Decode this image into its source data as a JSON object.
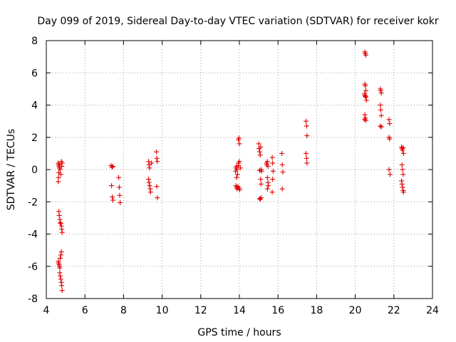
{
  "chart_data": {
    "type": "scatter",
    "title": "Day 099 of 2019, Sidereal Day-to-day VTEC variation (SDTVAR) for receiver kokr",
    "xlabel": "GPS time / hours",
    "ylabel": "SDTVAR / TECUs",
    "xlim": [
      4,
      24
    ],
    "ylim": [
      -8,
      8
    ],
    "xticks": [
      4,
      6,
      8,
      10,
      12,
      14,
      16,
      18,
      20,
      22,
      24
    ],
    "yticks": [
      -8,
      -6,
      -4,
      -2,
      0,
      2,
      4,
      6,
      8
    ],
    "grid": true,
    "marker": "+",
    "color": "#e00000",
    "series": [
      {
        "name": "SDTVAR",
        "points": [
          [
            4.62,
            0.4
          ],
          [
            4.64,
            0.3
          ],
          [
            4.66,
            0.2
          ],
          [
            4.68,
            0.1
          ],
          [
            4.65,
            -0.2
          ],
          [
            4.63,
            -0.5
          ],
          [
            4.62,
            -0.75
          ],
          [
            4.7,
            0.3
          ],
          [
            4.72,
            0.0
          ],
          [
            4.75,
            -0.3
          ],
          [
            4.78,
            0.5
          ],
          [
            4.8,
            0.2
          ],
          [
            4.82,
            0.4
          ],
          [
            4.65,
            -2.6
          ],
          [
            4.67,
            -2.85
          ],
          [
            4.7,
            -3.1
          ],
          [
            4.72,
            -3.3
          ],
          [
            4.75,
            -3.35
          ],
          [
            4.78,
            -3.5
          ],
          [
            4.8,
            -3.7
          ],
          [
            4.82,
            -3.9
          ],
          [
            4.62,
            -5.7
          ],
          [
            4.64,
            -5.8
          ],
          [
            4.66,
            -5.9
          ],
          [
            4.68,
            -6.0
          ],
          [
            4.7,
            -6.1
          ],
          [
            4.72,
            -5.5
          ],
          [
            4.75,
            -5.3
          ],
          [
            4.78,
            -5.1
          ],
          [
            4.7,
            -6.4
          ],
          [
            4.72,
            -6.6
          ],
          [
            4.75,
            -6.8
          ],
          [
            4.78,
            -7.0
          ],
          [
            4.8,
            -7.2
          ],
          [
            4.82,
            -7.5
          ],
          [
            7.35,
            0.25
          ],
          [
            7.4,
            0.15
          ],
          [
            7.45,
            0.2
          ],
          [
            7.38,
            -1.0
          ],
          [
            7.42,
            -1.7
          ],
          [
            7.45,
            -1.9
          ],
          [
            7.75,
            -0.5
          ],
          [
            7.78,
            -1.1
          ],
          [
            7.8,
            -1.6
          ],
          [
            7.82,
            -2.05
          ],
          [
            9.3,
            0.5
          ],
          [
            9.32,
            0.3
          ],
          [
            9.35,
            0.1
          ],
          [
            9.3,
            -0.6
          ],
          [
            9.32,
            -0.8
          ],
          [
            9.35,
            -1.0
          ],
          [
            9.38,
            -1.2
          ],
          [
            9.4,
            -1.4
          ],
          [
            9.45,
            0.4
          ],
          [
            9.7,
            1.1
          ],
          [
            9.72,
            0.7
          ],
          [
            9.75,
            0.5
          ],
          [
            9.72,
            -1.05
          ],
          [
            9.75,
            -1.75
          ],
          [
            13.8,
            -0.1
          ],
          [
            13.82,
            0.1
          ],
          [
            13.85,
            0.2
          ],
          [
            13.88,
            0.0
          ],
          [
            13.9,
            -0.3
          ],
          [
            13.85,
            -0.5
          ],
          [
            13.95,
            0.4
          ],
          [
            14.0,
            0.5
          ],
          [
            14.05,
            0.1
          ],
          [
            13.95,
            0.25
          ],
          [
            13.82,
            -1.0
          ],
          [
            13.85,
            -1.1
          ],
          [
            13.88,
            -1.2
          ],
          [
            13.92,
            -1.05
          ],
          [
            13.98,
            -1.15
          ],
          [
            14.02,
            -1.25
          ],
          [
            13.95,
            1.85
          ],
          [
            13.98,
            1.95
          ],
          [
            14.0,
            1.6
          ],
          [
            15.0,
            1.6
          ],
          [
            15.02,
            1.3
          ],
          [
            15.05,
            1.1
          ],
          [
            15.08,
            0.9
          ],
          [
            15.1,
            1.4
          ],
          [
            15.12,
            0.0
          ],
          [
            15.15,
            -0.1
          ],
          [
            15.05,
            -0.05
          ],
          [
            15.1,
            -0.6
          ],
          [
            15.12,
            -0.9
          ],
          [
            15.05,
            -1.8
          ],
          [
            15.08,
            -1.85
          ],
          [
            15.12,
            -1.75
          ],
          [
            15.4,
            0.4
          ],
          [
            15.42,
            0.3
          ],
          [
            15.45,
            0.5
          ],
          [
            15.48,
            0.2
          ],
          [
            15.45,
            -0.5
          ],
          [
            15.48,
            -0.8
          ],
          [
            15.5,
            -1.0
          ],
          [
            15.45,
            -1.2
          ],
          [
            15.7,
            0.75
          ],
          [
            15.72,
            0.4
          ],
          [
            15.75,
            -0.1
          ],
          [
            15.7,
            -1.4
          ],
          [
            15.72,
            -0.6
          ],
          [
            16.2,
            1.0
          ],
          [
            16.22,
            0.3
          ],
          [
            16.25,
            -0.15
          ],
          [
            16.22,
            -1.2
          ],
          [
            17.45,
            3.0
          ],
          [
            17.48,
            2.7
          ],
          [
            17.5,
            2.1
          ],
          [
            17.45,
            1.0
          ],
          [
            17.48,
            0.7
          ],
          [
            17.5,
            0.4
          ],
          [
            20.5,
            7.3
          ],
          [
            20.52,
            7.2
          ],
          [
            20.55,
            7.1
          ],
          [
            20.5,
            5.3
          ],
          [
            20.52,
            5.2
          ],
          [
            20.55,
            4.9
          ],
          [
            20.48,
            4.7
          ],
          [
            20.5,
            4.6
          ],
          [
            20.52,
            4.55
          ],
          [
            20.55,
            4.5
          ],
          [
            20.58,
            4.3
          ],
          [
            20.5,
            3.4
          ],
          [
            20.52,
            3.2
          ],
          [
            20.55,
            3.05
          ],
          [
            20.48,
            3.1
          ],
          [
            21.3,
            5.0
          ],
          [
            21.32,
            4.9
          ],
          [
            21.35,
            4.75
          ],
          [
            21.3,
            4.0
          ],
          [
            21.32,
            3.7
          ],
          [
            21.35,
            3.35
          ],
          [
            21.3,
            2.7
          ],
          [
            21.35,
            2.65
          ],
          [
            21.75,
            3.1
          ],
          [
            21.78,
            2.85
          ],
          [
            21.75,
            2.0
          ],
          [
            21.78,
            1.9
          ],
          [
            21.75,
            0.0
          ],
          [
            21.8,
            -0.3
          ],
          [
            22.4,
            1.4
          ],
          [
            22.42,
            1.3
          ],
          [
            22.45,
            1.2
          ],
          [
            22.48,
            1.35
          ],
          [
            22.5,
            1.0
          ],
          [
            22.42,
            0.3
          ],
          [
            22.45,
            0.0
          ],
          [
            22.48,
            -0.3
          ],
          [
            22.4,
            -0.7
          ],
          [
            22.42,
            -0.9
          ],
          [
            22.45,
            -1.1
          ],
          [
            22.48,
            -1.3
          ],
          [
            22.5,
            -1.4
          ]
        ]
      }
    ]
  }
}
